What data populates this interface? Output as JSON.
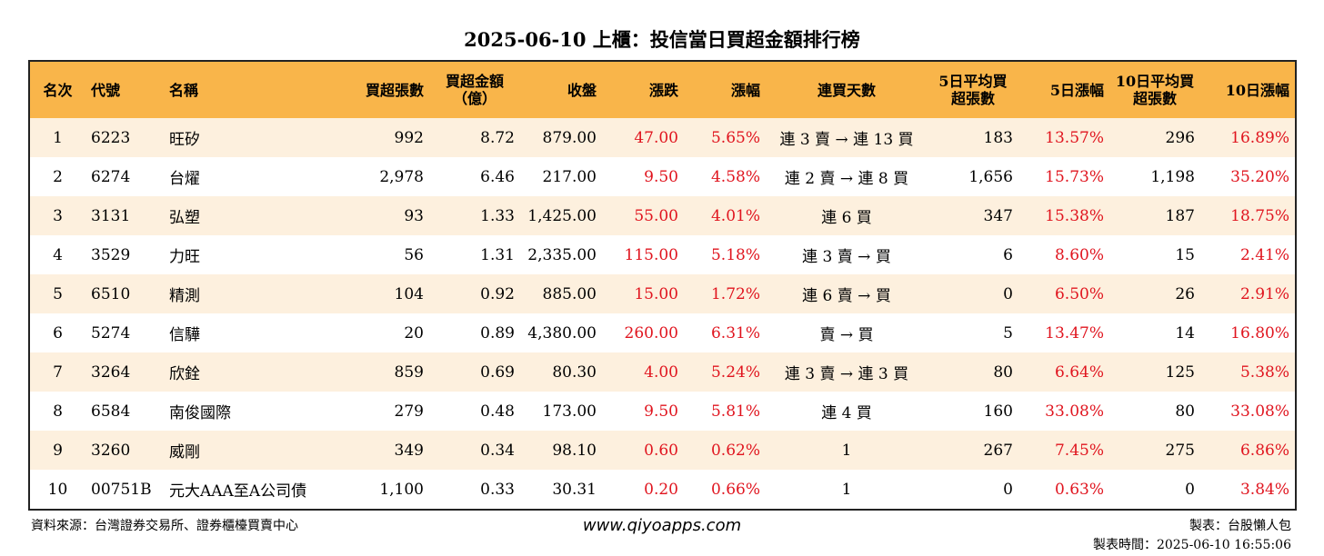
{
  "title": "2025-06-10 上櫃：投信當日買超金額排行榜",
  "headers": {
    "rank": "名次",
    "code": "代號",
    "name": "名稱",
    "buy_lots": "買超張數",
    "buy_amount": "買超金額（億）",
    "close": "收盤",
    "change": "漲跌",
    "change_pct": "漲幅",
    "consec_days": "連買天數",
    "avg5_buy": "5日平均買超張數",
    "pct5": "5日漲幅",
    "avg10_buy": "10日平均買超張數",
    "pct10": "10日漲幅"
  },
  "rows": [
    {
      "rank": "1",
      "code": "6223",
      "name": "旺矽",
      "buy_lots": "992",
      "buy_amount": "8.72",
      "close": "879.00",
      "change": "47.00",
      "change_pct": "5.65%",
      "consec_days": "連 3 賣 → 連 13 買",
      "avg5_buy": "183",
      "pct5": "13.57%",
      "avg10_buy": "296",
      "pct10": "16.89%"
    },
    {
      "rank": "2",
      "code": "6274",
      "name": "台燿",
      "buy_lots": "2,978",
      "buy_amount": "6.46",
      "close": "217.00",
      "change": "9.50",
      "change_pct": "4.58%",
      "consec_days": "連 2 賣 → 連 8 買",
      "avg5_buy": "1,656",
      "pct5": "15.73%",
      "avg10_buy": "1,198",
      "pct10": "35.20%"
    },
    {
      "rank": "3",
      "code": "3131",
      "name": "弘塑",
      "buy_lots": "93",
      "buy_amount": "1.33",
      "close": "1,425.00",
      "change": "55.00",
      "change_pct": "4.01%",
      "consec_days": "連 6 買",
      "avg5_buy": "347",
      "pct5": "15.38%",
      "avg10_buy": "187",
      "pct10": "18.75%"
    },
    {
      "rank": "4",
      "code": "3529",
      "name": "力旺",
      "buy_lots": "56",
      "buy_amount": "1.31",
      "close": "2,335.00",
      "change": "115.00",
      "change_pct": "5.18%",
      "consec_days": "連 3 賣 → 買",
      "avg5_buy": "6",
      "pct5": "8.60%",
      "avg10_buy": "15",
      "pct10": "2.41%"
    },
    {
      "rank": "5",
      "code": "6510",
      "name": "精測",
      "buy_lots": "104",
      "buy_amount": "0.92",
      "close": "885.00",
      "change": "15.00",
      "change_pct": "1.72%",
      "consec_days": "連 6 賣 → 買",
      "avg5_buy": "0",
      "pct5": "6.50%",
      "avg10_buy": "26",
      "pct10": "2.91%"
    },
    {
      "rank": "6",
      "code": "5274",
      "name": "信驊",
      "buy_lots": "20",
      "buy_amount": "0.89",
      "close": "4,380.00",
      "change": "260.00",
      "change_pct": "6.31%",
      "consec_days": "賣 → 買",
      "avg5_buy": "5",
      "pct5": "13.47%",
      "avg10_buy": "14",
      "pct10": "16.80%"
    },
    {
      "rank": "7",
      "code": "3264",
      "name": "欣銓",
      "buy_lots": "859",
      "buy_amount": "0.69",
      "close": "80.30",
      "change": "4.00",
      "change_pct": "5.24%",
      "consec_days": "連 3 賣 → 連 3 買",
      "avg5_buy": "80",
      "pct5": "6.64%",
      "avg10_buy": "125",
      "pct10": "5.38%"
    },
    {
      "rank": "8",
      "code": "6584",
      "name": "南俊國際",
      "buy_lots": "279",
      "buy_amount": "0.48",
      "close": "173.00",
      "change": "9.50",
      "change_pct": "5.81%",
      "consec_days": "連 4 買",
      "avg5_buy": "160",
      "pct5": "33.08%",
      "avg10_buy": "80",
      "pct10": "33.08%"
    },
    {
      "rank": "9",
      "code": "3260",
      "name": "威剛",
      "buy_lots": "349",
      "buy_amount": "0.34",
      "close": "98.10",
      "change": "0.60",
      "change_pct": "0.62%",
      "consec_days": "1",
      "avg5_buy": "267",
      "pct5": "7.45%",
      "avg10_buy": "275",
      "pct10": "6.86%"
    },
    {
      "rank": "10",
      "code": "00751B",
      "name": "元大AAA至A公司債",
      "buy_lots": "1,100",
      "buy_amount": "0.33",
      "close": "30.31",
      "change": "0.20",
      "change_pct": "0.66%",
      "consec_days": "1",
      "avg5_buy": "0",
      "pct5": "0.63%",
      "avg10_buy": "0",
      "pct10": "3.84%"
    }
  ],
  "footer": {
    "source": "資料來源：台灣證券交易所、證券櫃檯買賣中心",
    "website": "www.qiyoapps.com",
    "author": "製表：台股懶人包",
    "time": "製表時間：2025-06-10 16:55:06"
  },
  "colors": {
    "header_bg": "#f9b54a",
    "odd_row_bg": "#fdf0de",
    "positive": "#e0141e"
  }
}
